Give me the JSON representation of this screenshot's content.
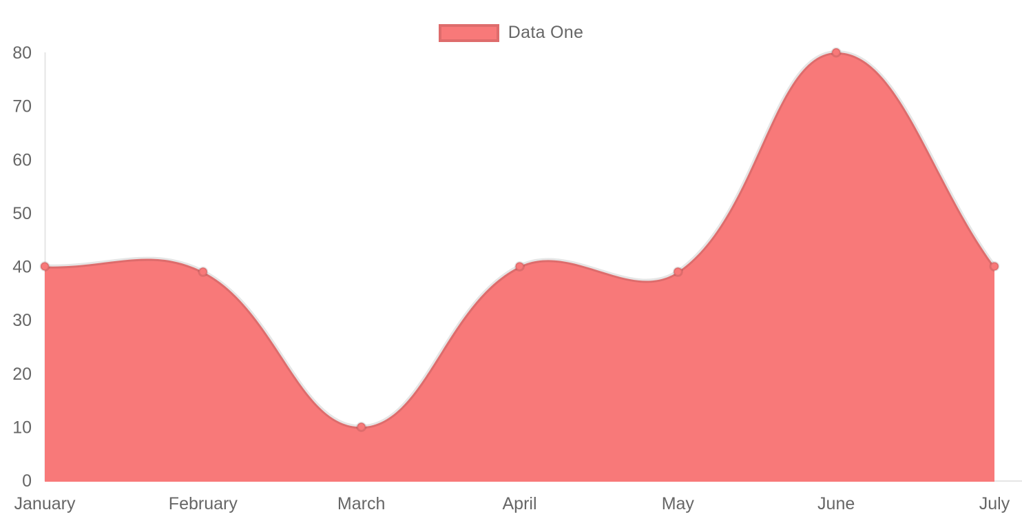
{
  "chart_data": {
    "type": "area",
    "title": "",
    "labels": [
      "January",
      "February",
      "March",
      "April",
      "May",
      "June",
      "July"
    ],
    "series": [
      {
        "name": "Data One",
        "values": [
          40,
          39,
          10,
          40,
          39,
          80,
          40
        ],
        "fill_color": "#f87979",
        "line_color": "rgba(0,0,0,0.1)",
        "point_color": "#f87979",
        "point_border_color": "rgba(0,0,0,0.1)"
      }
    ],
    "xlabel": "",
    "ylabel": "",
    "ylim": [
      0,
      80
    ],
    "y_ticks": [
      0,
      10,
      20,
      30,
      40,
      50,
      60,
      70,
      80
    ],
    "grid": false,
    "legend_position": "top",
    "curve_tension": 0.4,
    "axis_line_color": "rgba(0,0,0,0.1)",
    "tick_label_color": "#666666"
  }
}
